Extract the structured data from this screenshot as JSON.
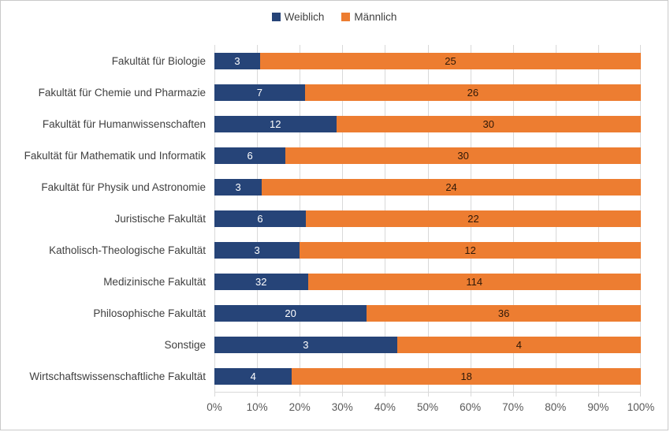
{
  "legend": {
    "items": [
      {
        "label": "Weiblich",
        "color": "#264478"
      },
      {
        "label": "Männlich",
        "color": "#ED7D31"
      }
    ]
  },
  "colors": {
    "weiblich": "#264478",
    "maennlich": "#ED7D31",
    "gridline": "#D9D9D9",
    "axis_text": "#595959",
    "category_text": "#404040",
    "label_on_blue": "#FFFFFF",
    "label_on_orange": "#2E1808"
  },
  "chart_data": {
    "type": "bar",
    "subtype": "stacked-100-horizontal",
    "title": "",
    "xlabel": "",
    "ylabel": "",
    "categories": [
      "Fakultät für Biologie",
      "Fakultät für Chemie und Pharmazie",
      "Fakultät für Humanwissenschaften",
      "Fakultät für Mathematik und Informatik",
      "Fakultät für Physik und Astronomie",
      "Juristische Fakultät",
      "Katholisch-Theologische Fakultät",
      "Medizinische Fakultät",
      "Philosophische Fakultät",
      "Sonstige",
      "Wirtschaftswissenschaftliche Fakultät"
    ],
    "series": [
      {
        "name": "Weiblich",
        "values": [
          3,
          7,
          12,
          6,
          3,
          6,
          3,
          32,
          20,
          3,
          4
        ]
      },
      {
        "name": "Männlich",
        "values": [
          25,
          26,
          30,
          30,
          24,
          22,
          12,
          114,
          36,
          4,
          18
        ]
      }
    ],
    "x_axis": {
      "ticks": [
        "0%",
        "10%",
        "20%",
        "30%",
        "40%",
        "50%",
        "60%",
        "70%",
        "80%",
        "90%",
        "100%"
      ],
      "range": [
        0,
        100
      ],
      "unit": "percent"
    },
    "grid": true,
    "legend_position": "top-center"
  }
}
